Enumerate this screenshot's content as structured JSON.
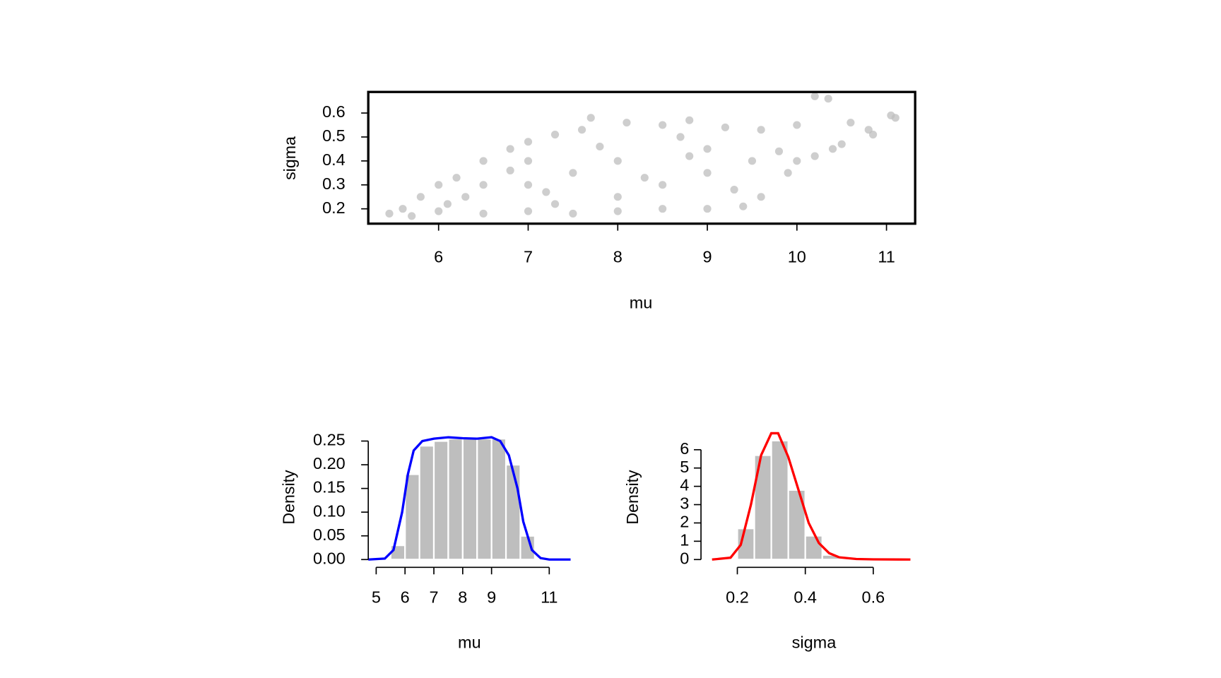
{
  "chart_data": [
    {
      "type": "scatter",
      "x_label": "mu",
      "y_label": "sigma",
      "color": "#bebebe",
      "xlim": [
        5.215,
        11.32
      ],
      "ylim": [
        0.138,
        0.688
      ],
      "xticks": [
        6,
        7,
        8,
        9,
        10,
        11
      ],
      "yticks": [
        0.2,
        0.3,
        0.4,
        0.5,
        0.6
      ],
      "x": [
        5.45,
        5.6,
        5.8,
        6.0,
        6.2,
        6.5,
        6.8,
        7.0,
        7.3,
        7.6,
        7.7,
        8.1,
        8.5,
        8.8,
        9.2,
        9.6,
        10.0,
        10.2,
        10.35,
        10.6,
        10.8,
        11.05,
        11.1,
        10.85,
        10.5,
        10.2,
        9.9,
        9.6,
        9.4,
        9.0,
        8.5,
        8.0,
        7.5,
        7.0,
        6.5,
        6.0,
        5.7,
        6.3,
        7.0,
        7.5,
        8.0,
        8.5,
        9.0,
        9.5,
        8.0,
        7.0,
        9.0,
        10.0,
        6.5,
        8.7,
        7.3,
        8.3,
        9.3,
        6.8,
        7.8,
        8.8,
        9.8,
        10.4,
        6.1,
        7.2
      ],
      "y": [
        0.18,
        0.2,
        0.25,
        0.3,
        0.33,
        0.4,
        0.45,
        0.48,
        0.51,
        0.53,
        0.58,
        0.56,
        0.55,
        0.57,
        0.54,
        0.53,
        0.55,
        0.67,
        0.66,
        0.56,
        0.53,
        0.59,
        0.58,
        0.51,
        0.47,
        0.42,
        0.35,
        0.25,
        0.21,
        0.2,
        0.2,
        0.19,
        0.18,
        0.19,
        0.18,
        0.19,
        0.17,
        0.25,
        0.3,
        0.35,
        0.4,
        0.3,
        0.35,
        0.4,
        0.25,
        0.4,
        0.45,
        0.4,
        0.3,
        0.5,
        0.22,
        0.33,
        0.28,
        0.36,
        0.46,
        0.42,
        0.44,
        0.45,
        0.22,
        0.27
      ]
    },
    {
      "type": "histogram",
      "x_label": "mu",
      "y_label": "Density",
      "color": "#bebebe",
      "bins": [
        5.5,
        6.0,
        6.5,
        7.0,
        7.5,
        8.0,
        8.5,
        9.0,
        9.5,
        10.0,
        10.5
      ],
      "values": [
        0.03,
        0.18,
        0.24,
        0.25,
        0.255,
        0.255,
        0.255,
        0.255,
        0.2,
        0.05
      ],
      "xlim": [
        4.726,
        11.74
      ],
      "ylim": [
        0,
        0.268
      ],
      "xticks": [
        5,
        6,
        7,
        8,
        9,
        11
      ],
      "yticks": [
        {
          "value": 0,
          "label": "0.00"
        },
        {
          "value": 0.05,
          "label": "0.05"
        },
        {
          "value": 0.1,
          "label": "0.10"
        },
        {
          "value": 0.15,
          "label": "0.15"
        },
        {
          "value": 0.2,
          "label": "0.20"
        },
        {
          "value": 0.25,
          "label": "0.25"
        }
      ],
      "density": {
        "color": "#0000ff",
        "x": [
          4.726,
          5.3,
          5.6,
          5.9,
          6.1,
          6.3,
          6.6,
          7.0,
          7.5,
          8.0,
          8.5,
          9.0,
          9.3,
          9.6,
          9.9,
          10.1,
          10.4,
          10.7,
          11.0,
          11.74
        ],
        "y": [
          0,
          0.002,
          0.02,
          0.1,
          0.18,
          0.23,
          0.25,
          0.255,
          0.258,
          0.256,
          0.255,
          0.258,
          0.25,
          0.22,
          0.15,
          0.08,
          0.02,
          0.003,
          0,
          0
        ]
      }
    },
    {
      "type": "histogram",
      "x_label": "sigma",
      "y_label": "Density",
      "color": "#bebebe",
      "bins": [
        0.15,
        0.2,
        0.25,
        0.3,
        0.35,
        0.4,
        0.45,
        0.5,
        0.55,
        0.6
      ],
      "values": [
        0.01,
        1.7,
        5.7,
        6.5,
        3.8,
        1.3,
        0.25,
        0.05,
        0.01
      ],
      "xlim": [
        0.1256,
        0.7093
      ],
      "ylim": [
        0,
        6.94
      ],
      "xticks": [
        0.2,
        0.4,
        0.6
      ],
      "yticks": [
        0,
        1,
        2,
        3,
        4,
        5,
        6
      ],
      "density": {
        "color": "#ff0000",
        "x": [
          0.1256,
          0.18,
          0.21,
          0.24,
          0.27,
          0.3,
          0.32,
          0.35,
          0.38,
          0.41,
          0.44,
          0.47,
          0.5,
          0.55,
          0.6,
          0.7093
        ],
        "y": [
          0,
          0.1,
          0.8,
          3,
          5.7,
          6.9,
          6.9,
          5.6,
          3.8,
          2,
          0.9,
          0.35,
          0.12,
          0.03,
          0.01,
          0
        ]
      }
    }
  ]
}
